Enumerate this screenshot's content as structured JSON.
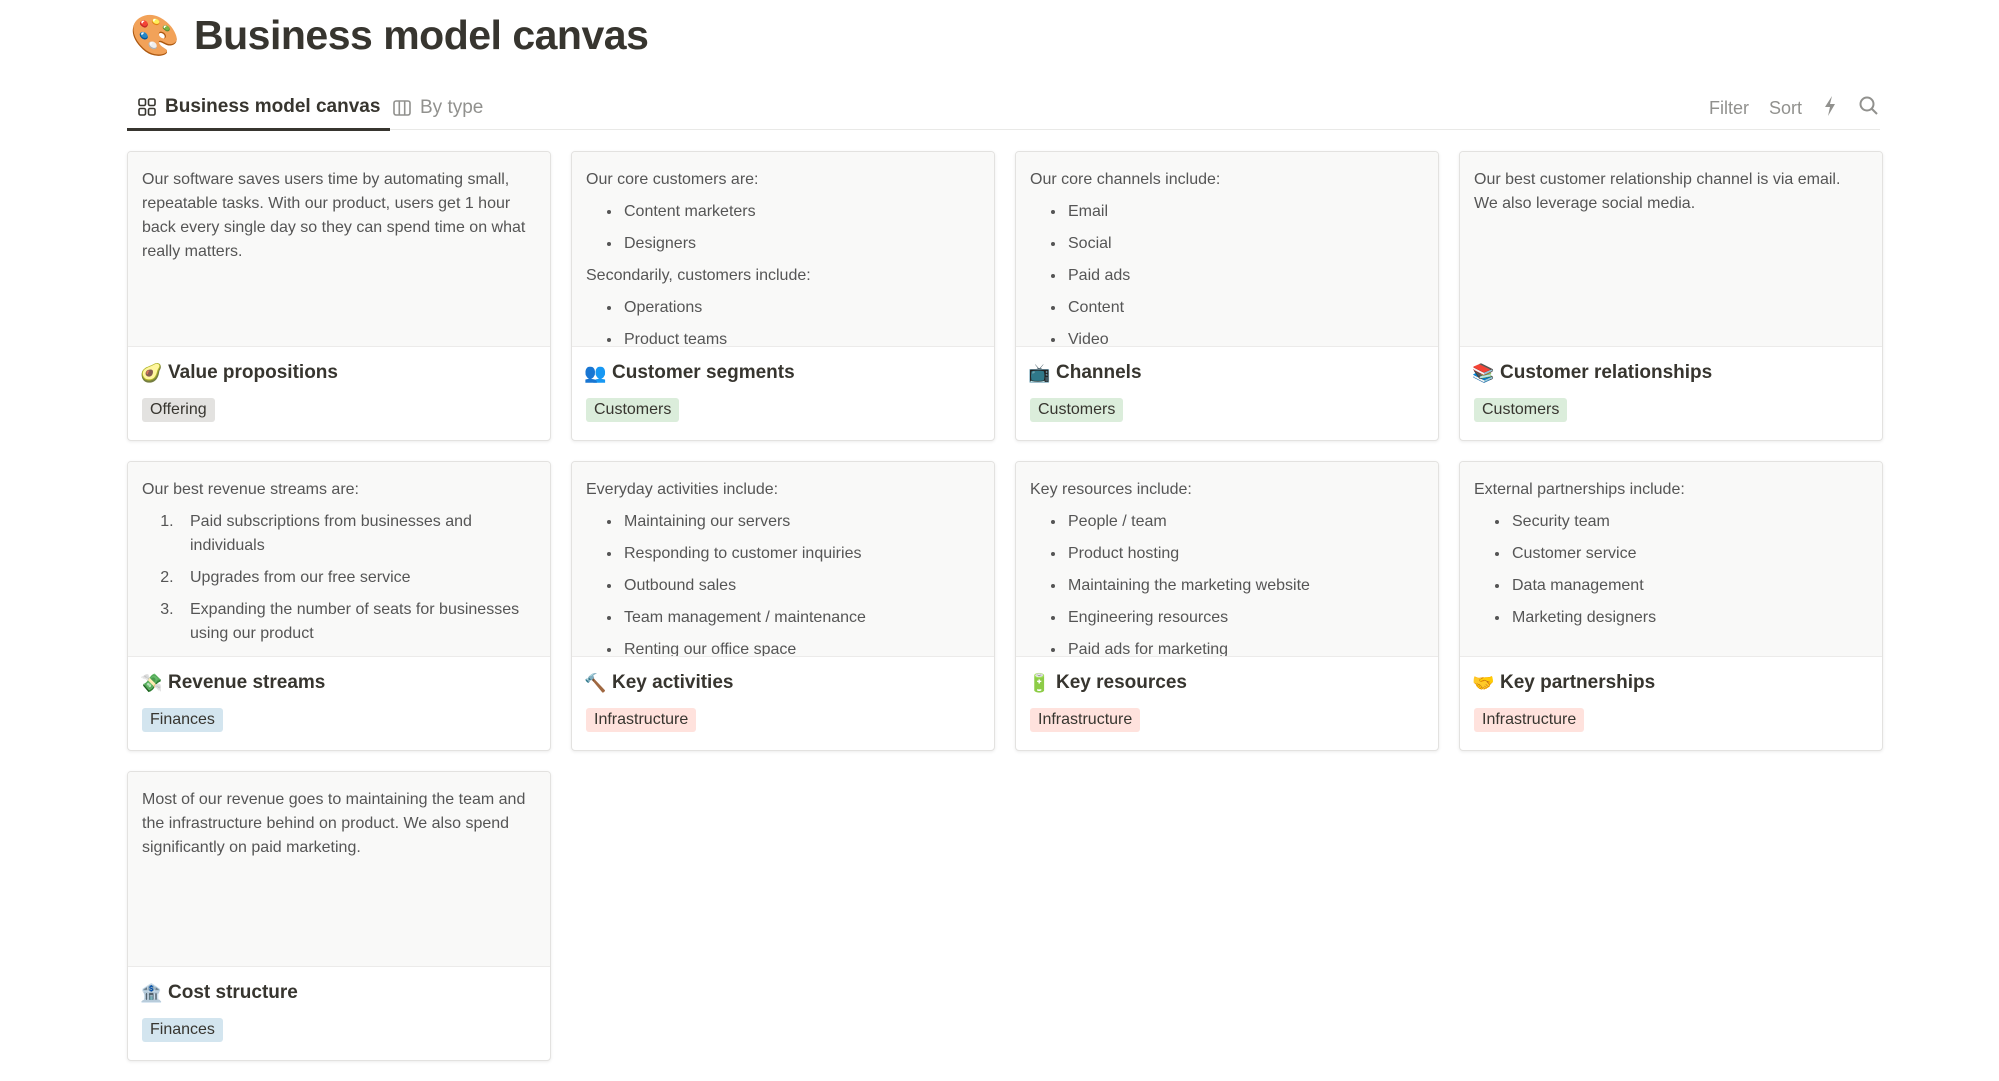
{
  "page": {
    "icon": "🎨",
    "title": "Business model canvas"
  },
  "tabs": [
    {
      "label": "Business model canvas",
      "icon": "gallery-icon",
      "active": true
    },
    {
      "label": "By type",
      "icon": "board-icon",
      "active": false
    }
  ],
  "toolbar": {
    "filter": "Filter",
    "sort": "Sort",
    "automation_icon": "lightning-icon",
    "search_icon": "search-icon"
  },
  "tag_colors": {
    "Offering": "#e3e2e0",
    "Customers": "#dbeddb",
    "Finances": "#d3e5ef",
    "Infrastructure": "#ffe2dd"
  },
  "cards": [
    {
      "icon": "🥑",
      "name": "Value propositions",
      "tag": "Offering",
      "body": [
        {
          "p": "Our software saves users time by automating small, repeatable tasks. With our product, users get 1 hour back every single day so they can spend time on what really matters."
        }
      ]
    },
    {
      "icon": "👥",
      "name": "Customer segments",
      "tag": "Customers",
      "body": [
        {
          "p": "Our core customers are:"
        },
        {
          "ul": [
            "Content marketers",
            "Designers"
          ]
        },
        {
          "p": "Secondarily, customers include:"
        },
        {
          "ul": [
            "Operations",
            "Product teams"
          ]
        }
      ]
    },
    {
      "icon": "📺",
      "name": "Channels",
      "tag": "Customers",
      "body": [
        {
          "p": "Our core channels include:"
        },
        {
          "ul": [
            "Email",
            "Social",
            "Paid ads",
            "Content",
            "Video"
          ]
        }
      ]
    },
    {
      "icon": "📚",
      "name": "Customer relationships",
      "tag": "Customers",
      "body": [
        {
          "p": "Our best customer relationship channel is via email. We also leverage social media."
        }
      ]
    },
    {
      "icon": "💸",
      "name": "Revenue streams",
      "tag": "Finances",
      "body": [
        {
          "p": "Our best revenue streams are:"
        },
        {
          "ol": [
            "Paid subscriptions from businesses and individuals",
            "Upgrades from our free service",
            "Expanding the number of seats for businesses using our product"
          ]
        }
      ]
    },
    {
      "icon": "🔨",
      "name": "Key activities",
      "tag": "Infrastructure",
      "body": [
        {
          "p": "Everyday activities include:"
        },
        {
          "ul": [
            "Maintaining our servers",
            "Responding to customer inquiries",
            "Outbound sales",
            "Team management / maintenance",
            "Renting our office space"
          ]
        }
      ]
    },
    {
      "icon": "🔋",
      "name": "Key resources",
      "tag": "Infrastructure",
      "body": [
        {
          "p": "Key resources include:"
        },
        {
          "ul": [
            "People / team",
            "Product hosting",
            "Maintaining the marketing website",
            "Engineering resources",
            "Paid ads for marketing"
          ]
        }
      ]
    },
    {
      "icon": "🤝",
      "name": "Key partnerships",
      "tag": "Infrastructure",
      "body": [
        {
          "p": "External partnerships include:"
        },
        {
          "ul": [
            "Security team",
            "Customer service",
            "Data management",
            "Marketing designers"
          ]
        }
      ]
    },
    {
      "icon": "🏦",
      "name": "Cost structure",
      "tag": "Finances",
      "body": [
        {
          "p": "Most of our revenue goes to maintaining the team and the infrastructure behind on product. We also spend significantly on paid marketing."
        }
      ]
    }
  ]
}
